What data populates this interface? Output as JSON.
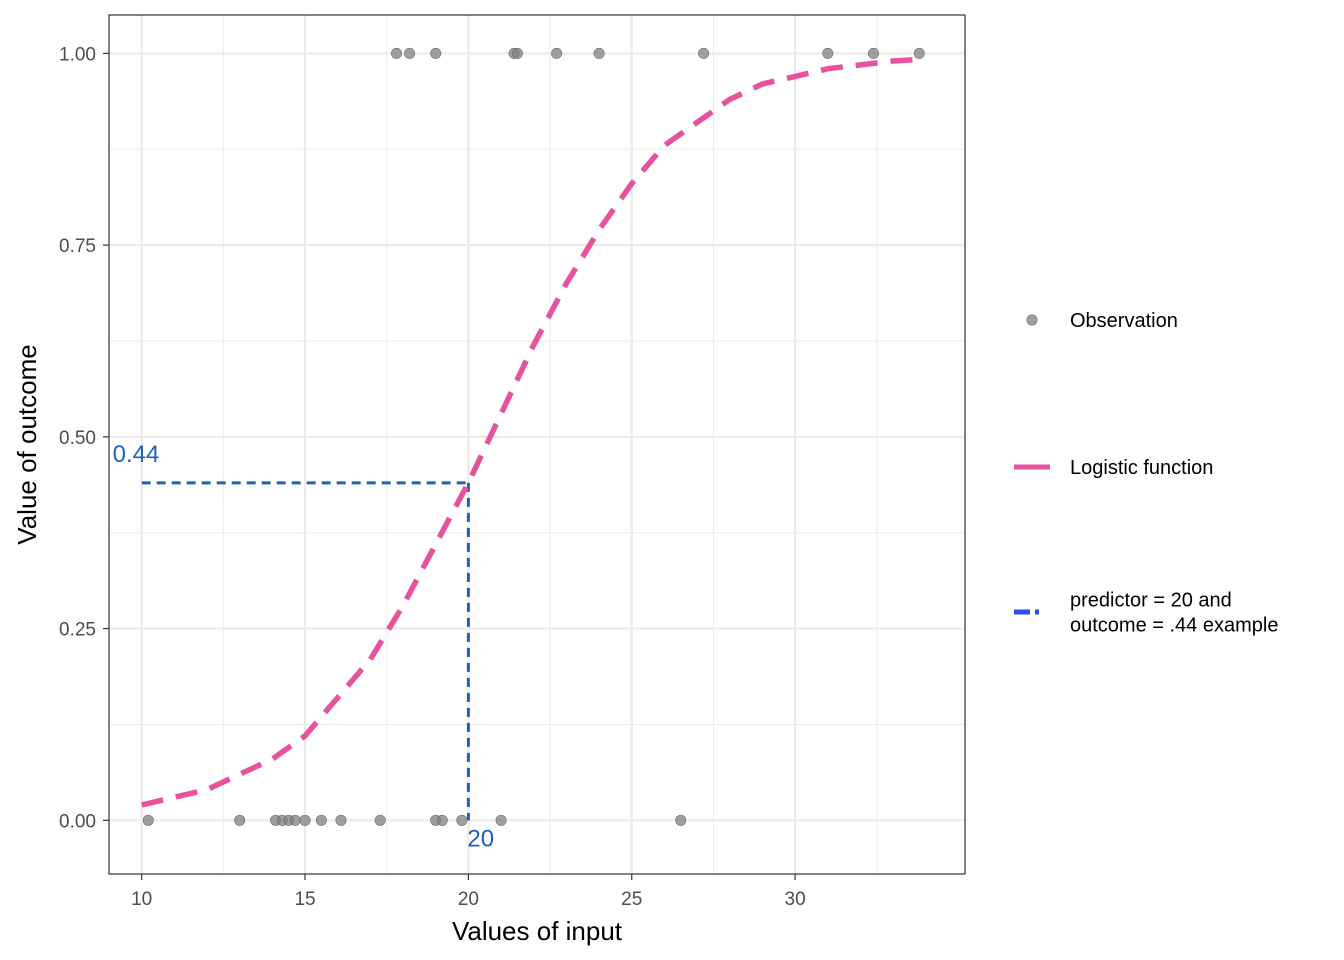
{
  "chart_data": {
    "type": "scatter",
    "xlabel": "Values of input",
    "ylabel": "Value of outcome",
    "xlim": [
      9.0,
      35.2
    ],
    "ylim": [
      -0.07,
      1.05
    ],
    "x_ticks": [
      10,
      15,
      20,
      25,
      30
    ],
    "x_tick_labels": [
      "10",
      "15",
      "20",
      "25",
      "30"
    ],
    "x_minor_ticks": [
      12.5,
      17.5,
      22.5,
      27.5,
      32.5
    ],
    "y_ticks": [
      0,
      0.25,
      0.5,
      0.75,
      1.0
    ],
    "y_tick_labels": [
      "0.00",
      "0.25",
      "0.50",
      "0.75",
      "1.00"
    ],
    "y_minor_ticks": [
      0.125,
      0.375,
      0.625,
      0.875
    ],
    "grid": true,
    "legend_position": "right",
    "colors": {
      "observation": "#808080",
      "logistic": "#e8519b",
      "example": "#1f5fbf",
      "example_legend": "#2b4fe8",
      "grid": "#ebebeb",
      "panel_border": "#333333"
    },
    "series": [
      {
        "name": "Observation",
        "kind": "points",
        "points": [
          [
            10.2,
            0
          ],
          [
            13.0,
            0
          ],
          [
            14.1,
            0
          ],
          [
            14.3,
            0
          ],
          [
            14.5,
            0
          ],
          [
            14.7,
            0
          ],
          [
            15.0,
            0
          ],
          [
            15.5,
            0
          ],
          [
            16.1,
            0
          ],
          [
            17.3,
            0
          ],
          [
            19.0,
            0
          ],
          [
            19.2,
            0
          ],
          [
            19.8,
            0
          ],
          [
            21.0,
            0
          ],
          [
            26.5,
            0
          ],
          [
            17.8,
            1
          ],
          [
            18.2,
            1
          ],
          [
            19.0,
            1
          ],
          [
            21.4,
            1
          ],
          [
            21.5,
            1
          ],
          [
            22.7,
            1
          ],
          [
            24.0,
            1
          ],
          [
            27.2,
            1
          ],
          [
            31.0,
            1
          ],
          [
            32.4,
            1
          ],
          [
            33.8,
            1
          ]
        ]
      },
      {
        "name": "Logistic function",
        "kind": "line",
        "x": [
          10,
          11,
          12,
          13,
          14,
          15,
          16,
          17,
          18,
          19,
          20,
          21,
          22,
          23,
          24,
          25,
          26,
          27,
          28,
          29,
          30,
          31,
          32,
          33,
          33.8
        ],
        "y": [
          0.02,
          0.03,
          0.04,
          0.06,
          0.08,
          0.11,
          0.16,
          0.21,
          0.28,
          0.36,
          0.44,
          0.53,
          0.62,
          0.7,
          0.77,
          0.83,
          0.88,
          0.91,
          0.94,
          0.96,
          0.97,
          0.98,
          0.985,
          0.99,
          0.992
        ]
      },
      {
        "name": "predictor = 20 and outcome = .44 example",
        "kind": "reference",
        "x": 20,
        "y": 0.44
      }
    ],
    "annotations": [
      {
        "text": "0.44",
        "x": 10,
        "y": 0.44
      },
      {
        "text": "20",
        "x": 20,
        "y": 0
      }
    ],
    "legend": {
      "items": [
        {
          "label_lines": [
            "Observation"
          ],
          "symbol": "point"
        },
        {
          "label_lines": [
            "Logistic function"
          ],
          "symbol": "line"
        },
        {
          "label_lines": [
            "predictor = 20 and",
            "outcome = .44 example"
          ],
          "symbol": "line-blue"
        }
      ]
    }
  }
}
